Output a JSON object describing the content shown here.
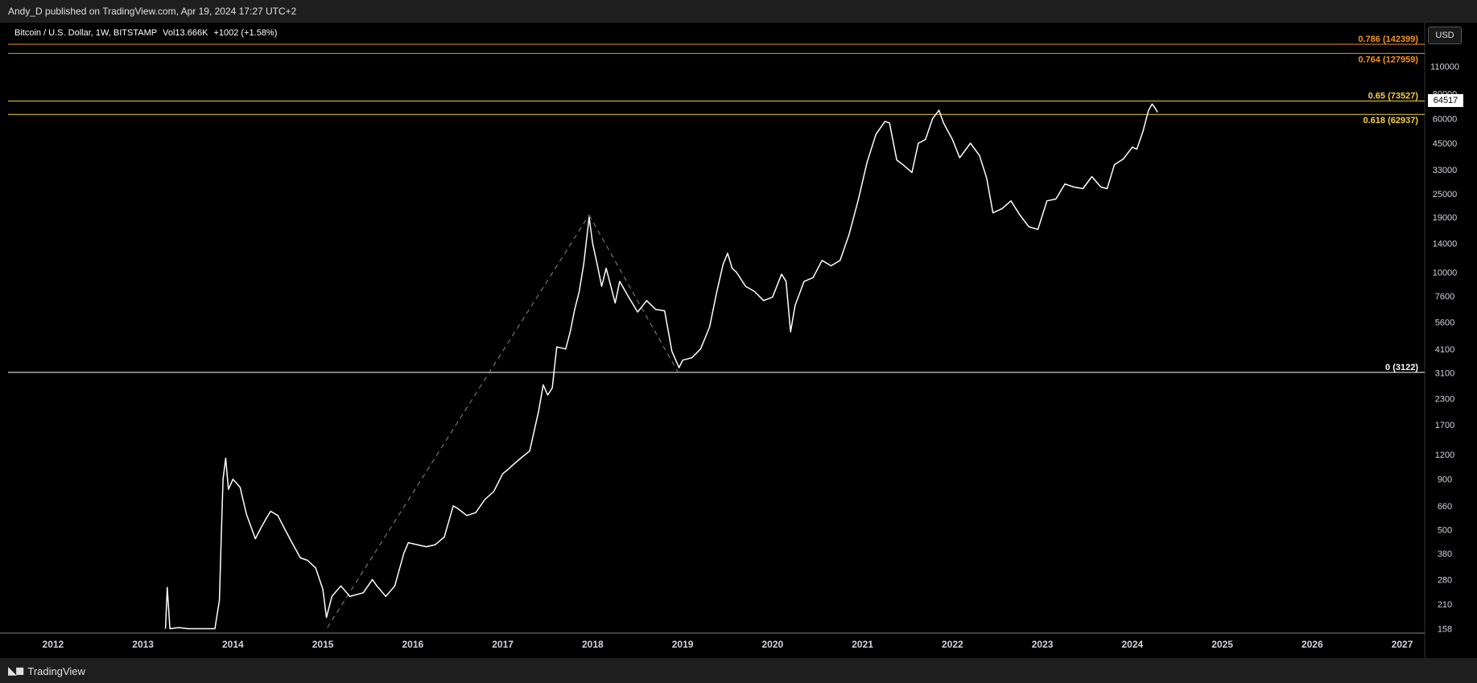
{
  "header": {
    "published": "Andy_D published on TradingView.com, Apr 19, 2024 17:27 UTC+2"
  },
  "legend": {
    "symbol": "Bitcoin / U.S. Dollar, 1W, BITSTAMP",
    "volume": "Vol13.666K",
    "change": "+1002 (+1.58%)"
  },
  "currency": "USD",
  "last_price": "64517",
  "footer": {
    "brand": "TradingView"
  },
  "colors": {
    "orange": "#f7931a",
    "yellow": "#f5d33a",
    "white": "#ffffff",
    "background": "#000000"
  },
  "chart_data": {
    "type": "line",
    "log_scale": true,
    "ylim": [
      150,
      175000
    ],
    "xlim": [
      2011.5,
      2027.25
    ],
    "y_ticks": [
      158,
      210,
      280,
      380,
      500,
      660,
      900,
      1200,
      1700,
      2300,
      3100,
      4100,
      5600,
      7600,
      10000,
      14000,
      19000,
      25000,
      33000,
      45000,
      60000,
      80000,
      110000
    ],
    "x_ticks": [
      "2012",
      "2013",
      "2014",
      "2015",
      "2016",
      "2017",
      "2018",
      "2019",
      "2020",
      "2021",
      "2022",
      "2023",
      "2024",
      "2025",
      "2026",
      "2027"
    ],
    "fib_levels": [
      {
        "label": "0.786 (142399)",
        "value": 142399,
        "color": "#f7931a"
      },
      {
        "label": "0.764 (127959)",
        "value": 127959,
        "color": "#f7931a"
      },
      {
        "label": "0.65 (73527)",
        "value": 73527,
        "color": "#f5d33a"
      },
      {
        "label": "0.618 (62937)",
        "value": 62937,
        "color": "#f5d33a"
      },
      {
        "label": "0 (3122)",
        "value": 3122,
        "color": "#ffffff"
      }
    ],
    "trend_lines": [
      {
        "from": {
          "x": 2015.05,
          "y": 160
        },
        "to": {
          "x": 2017.96,
          "y": 19500
        }
      },
      {
        "from": {
          "x": 2017.96,
          "y": 19500
        },
        "to": {
          "x": 2018.95,
          "y": 3122
        }
      }
    ],
    "series": [
      {
        "values": [
          [
            2013.25,
            158
          ],
          [
            2013.27,
            255
          ],
          [
            2013.3,
            158
          ],
          [
            2013.4,
            160
          ],
          [
            2013.5,
            158
          ],
          [
            2013.8,
            158
          ],
          [
            2013.85,
            220
          ],
          [
            2013.87,
            450
          ],
          [
            2013.89,
            900
          ],
          [
            2013.92,
            1150
          ],
          [
            2013.95,
            800
          ],
          [
            2014.0,
            900
          ],
          [
            2014.08,
            820
          ],
          [
            2014.15,
            600
          ],
          [
            2014.25,
            450
          ],
          [
            2014.3,
            500
          ],
          [
            2014.38,
            580
          ],
          [
            2014.42,
            620
          ],
          [
            2014.5,
            590
          ],
          [
            2014.58,
            500
          ],
          [
            2014.67,
            420
          ],
          [
            2014.75,
            360
          ],
          [
            2014.83,
            350
          ],
          [
            2014.92,
            320
          ],
          [
            2015.0,
            250
          ],
          [
            2015.04,
            180
          ],
          [
            2015.1,
            230
          ],
          [
            2015.2,
            260
          ],
          [
            2015.3,
            230
          ],
          [
            2015.45,
            240
          ],
          [
            2015.55,
            280
          ],
          [
            2015.6,
            260
          ],
          [
            2015.7,
            230
          ],
          [
            2015.8,
            260
          ],
          [
            2015.9,
            380
          ],
          [
            2015.95,
            430
          ],
          [
            2016.05,
            420
          ],
          [
            2016.15,
            410
          ],
          [
            2016.25,
            420
          ],
          [
            2016.35,
            460
          ],
          [
            2016.45,
            660
          ],
          [
            2016.5,
            640
          ],
          [
            2016.6,
            590
          ],
          [
            2016.7,
            610
          ],
          [
            2016.8,
            710
          ],
          [
            2016.9,
            780
          ],
          [
            2017.0,
            960
          ],
          [
            2017.05,
            1000
          ],
          [
            2017.1,
            1050
          ],
          [
            2017.2,
            1150
          ],
          [
            2017.3,
            1250
          ],
          [
            2017.4,
            2000
          ],
          [
            2017.45,
            2700
          ],
          [
            2017.5,
            2400
          ],
          [
            2017.55,
            2600
          ],
          [
            2017.6,
            4200
          ],
          [
            2017.7,
            4100
          ],
          [
            2017.75,
            5000
          ],
          [
            2017.8,
            6500
          ],
          [
            2017.85,
            8000
          ],
          [
            2017.9,
            11000
          ],
          [
            2017.96,
            19000
          ],
          [
            2018.0,
            14000
          ],
          [
            2018.05,
            11000
          ],
          [
            2018.1,
            8500
          ],
          [
            2018.15,
            10500
          ],
          [
            2018.25,
            7000
          ],
          [
            2018.3,
            9000
          ],
          [
            2018.4,
            7500
          ],
          [
            2018.5,
            6300
          ],
          [
            2018.6,
            7200
          ],
          [
            2018.7,
            6500
          ],
          [
            2018.8,
            6400
          ],
          [
            2018.88,
            4000
          ],
          [
            2018.96,
            3300
          ],
          [
            2019.0,
            3600
          ],
          [
            2019.1,
            3700
          ],
          [
            2019.2,
            4100
          ],
          [
            2019.3,
            5300
          ],
          [
            2019.38,
            8000
          ],
          [
            2019.45,
            11000
          ],
          [
            2019.5,
            12500
          ],
          [
            2019.55,
            10500
          ],
          [
            2019.6,
            10000
          ],
          [
            2019.7,
            8500
          ],
          [
            2019.8,
            8000
          ],
          [
            2019.9,
            7200
          ],
          [
            2020.0,
            7500
          ],
          [
            2020.1,
            9800
          ],
          [
            2020.15,
            9000
          ],
          [
            2020.2,
            5000
          ],
          [
            2020.25,
            6800
          ],
          [
            2020.35,
            9000
          ],
          [
            2020.45,
            9400
          ],
          [
            2020.55,
            11500
          ],
          [
            2020.65,
            10800
          ],
          [
            2020.75,
            11500
          ],
          [
            2020.85,
            15500
          ],
          [
            2020.95,
            23000
          ],
          [
            2021.05,
            36000
          ],
          [
            2021.15,
            50000
          ],
          [
            2021.25,
            58000
          ],
          [
            2021.3,
            57000
          ],
          [
            2021.38,
            37000
          ],
          [
            2021.45,
            35000
          ],
          [
            2021.55,
            32000
          ],
          [
            2021.62,
            45000
          ],
          [
            2021.7,
            47000
          ],
          [
            2021.78,
            60000
          ],
          [
            2021.85,
            66000
          ],
          [
            2021.9,
            57000
          ],
          [
            2022.0,
            47000
          ],
          [
            2022.08,
            38000
          ],
          [
            2022.2,
            45000
          ],
          [
            2022.3,
            39000
          ],
          [
            2022.38,
            30000
          ],
          [
            2022.45,
            20000
          ],
          [
            2022.55,
            21000
          ],
          [
            2022.65,
            23000
          ],
          [
            2022.75,
            19500
          ],
          [
            2022.85,
            17000
          ],
          [
            2022.95,
            16500
          ],
          [
            2023.05,
            23000
          ],
          [
            2023.15,
            23500
          ],
          [
            2023.25,
            28000
          ],
          [
            2023.35,
            27000
          ],
          [
            2023.45,
            26500
          ],
          [
            2023.55,
            30500
          ],
          [
            2023.65,
            27000
          ],
          [
            2023.72,
            26500
          ],
          [
            2023.8,
            35000
          ],
          [
            2023.9,
            37500
          ],
          [
            2024.0,
            43000
          ],
          [
            2024.05,
            42000
          ],
          [
            2024.12,
            52000
          ],
          [
            2024.18,
            66000
          ],
          [
            2024.22,
            71000
          ],
          [
            2024.25,
            68000
          ],
          [
            2024.28,
            64517
          ]
        ]
      }
    ]
  }
}
